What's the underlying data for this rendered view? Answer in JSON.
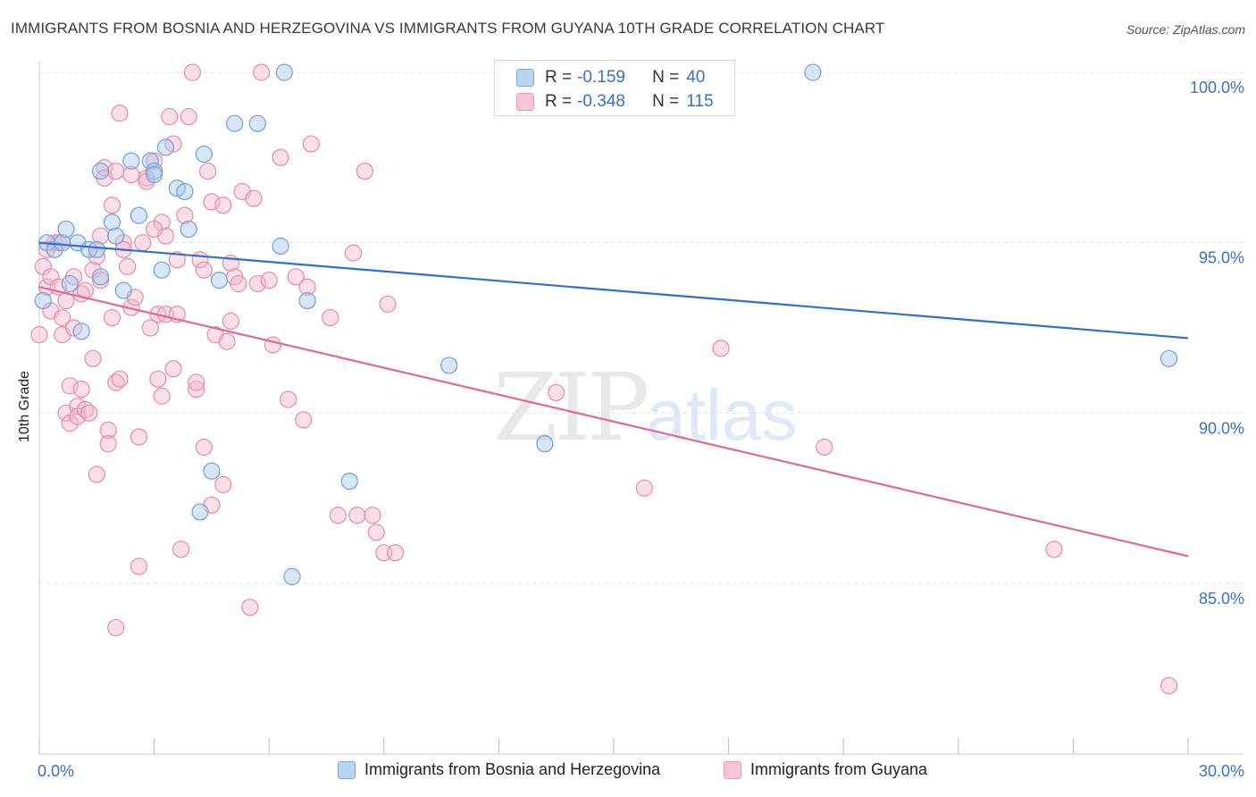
{
  "header": {
    "title": "IMMIGRANTS FROM BOSNIA AND HERZEGOVINA VS IMMIGRANTS FROM GUYANA 10TH GRADE CORRELATION CHART",
    "source": "Source: ZipAtlas.com"
  },
  "watermark": {
    "zip": "ZIP",
    "atlas": "atlas"
  },
  "stats": {
    "series1": {
      "r_label": "R =",
      "r_value": "-0.159",
      "n_label": "N =",
      "n_value": "40"
    },
    "series2": {
      "r_label": "R =",
      "r_value": "-0.348",
      "n_label": "N =",
      "n_value": "115"
    }
  },
  "colors": {
    "blue_fill": "#a8c8f0",
    "blue_stroke": "#6f9fd8",
    "blue_line": "#2f6fd0",
    "pink_fill": "#f5b8cc",
    "pink_stroke": "#e88aa8",
    "pink_line": "#e06b95",
    "value_text": "#3a6fc8",
    "grid": "#e3e3e3"
  },
  "chart_data": {
    "type": "scatter",
    "title": "IMMIGRANTS FROM BOSNIA AND HERZEGOVINA VS IMMIGRANTS FROM GUYANA 10TH GRADE CORRELATION CHART",
    "xlabel": "",
    "ylabel": "10th Grade",
    "xlim": [
      0,
      30
    ],
    "ylim": [
      80.0,
      101.0
    ],
    "x_tick_labels": [
      "0.0%",
      "30.0%"
    ],
    "y_tick_labels": [
      "100.0%",
      "95.0%",
      "90.0%",
      "85.0%"
    ],
    "y_ticks": [
      100,
      95,
      90,
      85
    ],
    "grid": true,
    "legend_position": "bottom",
    "series": [
      {
        "name": "Immigrants from Bosnia and Herzegovina",
        "color": "#a8c8f0",
        "trend": {
          "x": [
            0,
            30
          ],
          "y": [
            95.0,
            92.2
          ]
        },
        "points": [
          [
            0.1,
            93.3
          ],
          [
            0.2,
            95.0
          ],
          [
            0.4,
            94.8
          ],
          [
            0.6,
            95.0
          ],
          [
            0.7,
            95.4
          ],
          [
            0.8,
            93.8
          ],
          [
            1.0,
            95.0
          ],
          [
            1.1,
            92.4
          ],
          [
            1.3,
            94.8
          ],
          [
            1.6,
            94.0
          ],
          [
            1.6,
            97.1
          ],
          [
            1.9,
            95.6
          ],
          [
            2.0,
            95.2
          ],
          [
            2.2,
            93.6
          ],
          [
            2.4,
            97.4
          ],
          [
            2.6,
            95.8
          ],
          [
            2.9,
            97.4
          ],
          [
            3.0,
            97.1
          ],
          [
            3.2,
            94.2
          ],
          [
            3.3,
            97.8
          ],
          [
            3.6,
            96.6
          ],
          [
            3.8,
            96.5
          ],
          [
            3.9,
            95.4
          ],
          [
            4.2,
            87.1
          ],
          [
            4.3,
            97.6
          ],
          [
            4.5,
            88.3
          ],
          [
            4.7,
            93.9
          ],
          [
            5.1,
            98.5
          ],
          [
            5.7,
            98.5
          ],
          [
            6.3,
            94.9
          ],
          [
            6.4,
            100.0
          ],
          [
            6.6,
            85.2
          ],
          [
            7.0,
            93.3
          ],
          [
            8.1,
            88.0
          ],
          [
            10.7,
            91.4
          ],
          [
            13.2,
            89.1
          ],
          [
            20.2,
            100.0
          ],
          [
            29.5,
            91.6
          ],
          [
            1.5,
            94.8
          ],
          [
            3.0,
            97.0
          ]
        ]
      },
      {
        "name": "Immigrants from Guyana",
        "color": "#f5b8cc",
        "trend": {
          "x": [
            0,
            30
          ],
          "y": [
            93.7,
            85.8
          ]
        },
        "points": [
          [
            0.0,
            92.3
          ],
          [
            0.1,
            94.3
          ],
          [
            0.2,
            93.7
          ],
          [
            0.3,
            94.0
          ],
          [
            0.3,
            93.0
          ],
          [
            0.4,
            95.0
          ],
          [
            0.5,
            93.7
          ],
          [
            0.6,
            92.3
          ],
          [
            0.6,
            92.8
          ],
          [
            0.7,
            93.3
          ],
          [
            0.7,
            90.0
          ],
          [
            0.8,
            89.7
          ],
          [
            0.8,
            90.8
          ],
          [
            0.9,
            94.0
          ],
          [
            1.0,
            90.2
          ],
          [
            1.0,
            89.9
          ],
          [
            1.1,
            90.7
          ],
          [
            1.1,
            93.5
          ],
          [
            1.2,
            90.1
          ],
          [
            1.3,
            90.0
          ],
          [
            1.4,
            94.2
          ],
          [
            1.4,
            91.6
          ],
          [
            1.5,
            94.6
          ],
          [
            1.5,
            88.2
          ],
          [
            1.6,
            93.9
          ],
          [
            1.7,
            97.2
          ],
          [
            1.7,
            96.9
          ],
          [
            1.8,
            89.5
          ],
          [
            1.8,
            89.1
          ],
          [
            1.9,
            92.8
          ],
          [
            1.9,
            96.1
          ],
          [
            2.0,
            97.1
          ],
          [
            2.0,
            90.9
          ],
          [
            2.1,
            98.8
          ],
          [
            2.1,
            91.0
          ],
          [
            2.2,
            95.0
          ],
          [
            2.3,
            94.3
          ],
          [
            2.4,
            93.1
          ],
          [
            2.5,
            93.4
          ],
          [
            2.6,
            85.5
          ],
          [
            2.6,
            89.3
          ],
          [
            2.7,
            95.0
          ],
          [
            2.8,
            96.9
          ],
          [
            2.9,
            92.5
          ],
          [
            3.0,
            97.4
          ],
          [
            3.1,
            92.9
          ],
          [
            3.1,
            91.0
          ],
          [
            3.2,
            90.5
          ],
          [
            3.2,
            95.6
          ],
          [
            3.3,
            95.2
          ],
          [
            3.3,
            92.9
          ],
          [
            3.4,
            98.7
          ],
          [
            3.5,
            97.9
          ],
          [
            3.5,
            91.3
          ],
          [
            3.6,
            92.9
          ],
          [
            3.7,
            86.0
          ],
          [
            3.8,
            95.8
          ],
          [
            3.9,
            98.7
          ],
          [
            4.0,
            100.0
          ],
          [
            4.1,
            90.7
          ],
          [
            4.1,
            90.9
          ],
          [
            4.2,
            94.5
          ],
          [
            4.3,
            94.2
          ],
          [
            4.3,
            89.0
          ],
          [
            4.4,
            97.1
          ],
          [
            4.5,
            96.2
          ],
          [
            4.5,
            87.3
          ],
          [
            4.6,
            92.3
          ],
          [
            4.8,
            96.1
          ],
          [
            4.8,
            87.9
          ],
          [
            5.0,
            94.4
          ],
          [
            5.0,
            92.7
          ],
          [
            5.1,
            94.0
          ],
          [
            5.2,
            93.8
          ],
          [
            5.3,
            96.5
          ],
          [
            5.5,
            84.3
          ],
          [
            5.6,
            96.3
          ],
          [
            5.7,
            93.8
          ],
          [
            5.8,
            100.0
          ],
          [
            6.0,
            93.9
          ],
          [
            6.1,
            92.0
          ],
          [
            6.3,
            97.5
          ],
          [
            6.5,
            90.4
          ],
          [
            6.7,
            94.0
          ],
          [
            6.9,
            89.8
          ],
          [
            7.0,
            93.7
          ],
          [
            7.1,
            97.9
          ],
          [
            7.6,
            92.8
          ],
          [
            7.8,
            87.0
          ],
          [
            8.2,
            94.7
          ],
          [
            8.3,
            87.0
          ],
          [
            8.5,
            97.1
          ],
          [
            8.7,
            87.0
          ],
          [
            8.8,
            86.5
          ],
          [
            9.0,
            85.9
          ],
          [
            9.1,
            93.2
          ],
          [
            9.3,
            85.9
          ],
          [
            13.5,
            90.6
          ],
          [
            15.8,
            87.8
          ],
          [
            17.8,
            91.9
          ],
          [
            20.5,
            89.0
          ],
          [
            26.5,
            86.0
          ],
          [
            29.5,
            82.0
          ],
          [
            2.0,
            83.7
          ],
          [
            0.5,
            95.0
          ],
          [
            1.2,
            93.6
          ],
          [
            2.4,
            97.0
          ],
          [
            2.8,
            96.8
          ],
          [
            3.0,
            95.4
          ],
          [
            0.2,
            94.8
          ],
          [
            0.9,
            92.5
          ],
          [
            1.6,
            95.2
          ],
          [
            2.2,
            94.8
          ],
          [
            3.6,
            94.5
          ],
          [
            4.9,
            92.1
          ]
        ]
      }
    ]
  }
}
